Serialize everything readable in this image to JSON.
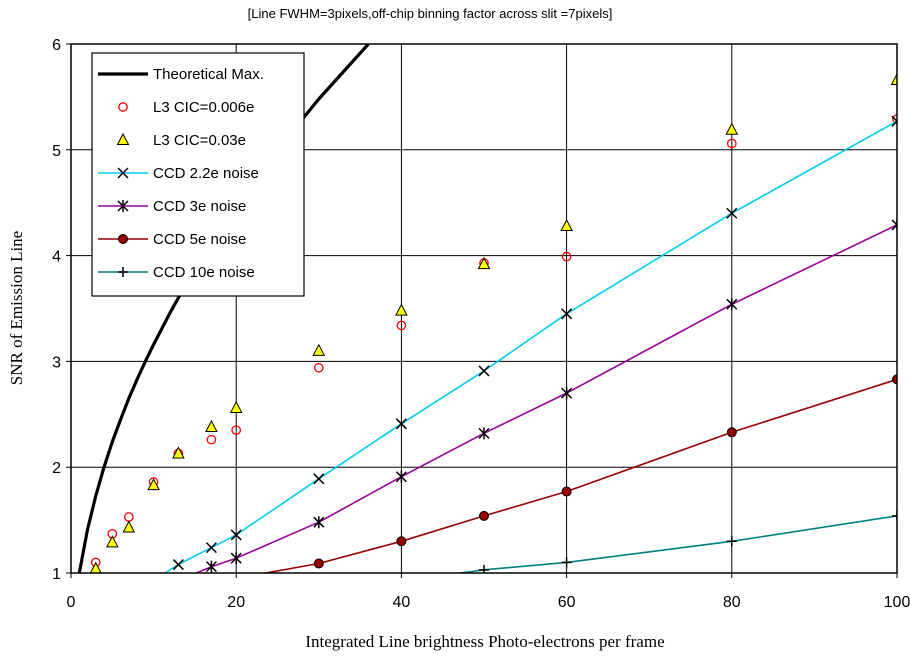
{
  "chart_data": {
    "type": "line",
    "title": "[Line FWHM=3pixels,off-chip  binning factor across slit =7pixels]",
    "xlabel": "Integrated Line brightness Photo-electrons per frame",
    "ylabel": "SNR of Emission Line",
    "xlim": [
      0,
      100
    ],
    "ylim": [
      1,
      6
    ],
    "x_ticks": [
      "0",
      "20",
      "40",
      "60",
      "80",
      "100"
    ],
    "y_ticks": [
      "1",
      "2",
      "3",
      "4",
      "5",
      "6"
    ],
    "grid": true,
    "legend_position": "top-left",
    "series": [
      {
        "name": "Theoretical Max.",
        "style": "line",
        "color": "#000000",
        "x": [
          1,
          2,
          3,
          4,
          5,
          6,
          7,
          8,
          9,
          10,
          12,
          14,
          16,
          20,
          25,
          30,
          36
        ],
        "y": [
          1.0,
          1.41,
          1.73,
          2.0,
          2.24,
          2.45,
          2.65,
          2.83,
          3.0,
          3.16,
          3.46,
          3.74,
          4.0,
          4.47,
          5.0,
          5.48,
          6.0
        ]
      },
      {
        "name": "L3 CIC=0.006e",
        "style": "markers",
        "marker": "circle-open",
        "color": "#ff0000",
        "x": [
          3,
          5,
          7,
          10,
          13,
          17,
          20,
          30,
          40,
          50,
          60,
          80,
          100
        ],
        "y": [
          1.1,
          1.37,
          1.53,
          1.86,
          2.13,
          2.26,
          2.35,
          2.94,
          3.34,
          3.93,
          3.99,
          5.06,
          5.29
        ]
      },
      {
        "name": "L3 CIC=0.03e",
        "style": "markers",
        "marker": "triangle-filled",
        "color": "#ffff00",
        "x": [
          3,
          5,
          7,
          10,
          13,
          17,
          20,
          30,
          40,
          50,
          60,
          80,
          100
        ],
        "y": [
          1.04,
          1.29,
          1.43,
          1.83,
          2.13,
          2.38,
          2.56,
          3.1,
          3.48,
          3.92,
          4.28,
          5.19,
          5.66
        ]
      },
      {
        "name": "CCD 2.2e noise",
        "style": "line-markers",
        "marker": "x",
        "color": "#00ccee",
        "x": [
          10,
          13,
          17,
          20,
          30,
          40,
          50,
          60,
          80,
          100
        ],
        "y": [
          0.93,
          1.08,
          1.24,
          1.36,
          1.89,
          2.41,
          2.91,
          3.45,
          4.4,
          5.27
        ]
      },
      {
        "name": "CCD 3e noise",
        "style": "line-markers",
        "marker": "star",
        "color": "#990099",
        "x": [
          13,
          17,
          20,
          30,
          40,
          50,
          60,
          80,
          100
        ],
        "y": [
          0.93,
          1.06,
          1.14,
          1.48,
          1.91,
          2.32,
          2.7,
          3.54,
          4.29
        ]
      },
      {
        "name": "CCD 5e noise",
        "style": "line-markers",
        "marker": "dot",
        "color": "#990000",
        "x": [
          17,
          20,
          30,
          40,
          50,
          60,
          80,
          100
        ],
        "y": [
          0.91,
          0.95,
          1.09,
          1.3,
          1.54,
          1.77,
          2.33,
          2.83
        ]
      },
      {
        "name": "CCD 10e noise",
        "style": "line-markers",
        "marker": "plus",
        "color": "#008080",
        "x": [
          40,
          50,
          60,
          80,
          100
        ],
        "y": [
          0.92,
          1.03,
          1.1,
          1.3,
          1.54
        ]
      }
    ]
  }
}
